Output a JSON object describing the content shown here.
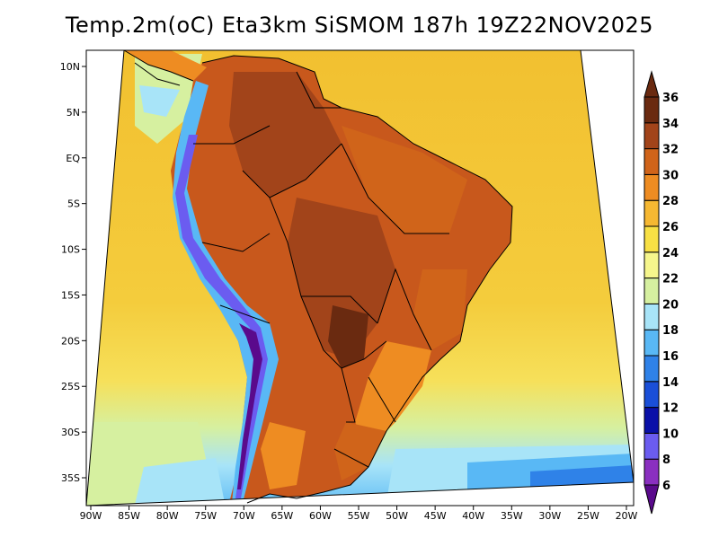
{
  "title": "Temp.2m(oC) Eta3km SiSMOM 187h 19Z22NOV2025",
  "lat_ticks": [
    "10N",
    "5N",
    "EQ",
    "5S",
    "10S",
    "15S",
    "20S",
    "25S",
    "30S",
    "35S"
  ],
  "lon_ticks": [
    "90W",
    "85W",
    "80W",
    "75W",
    "70W",
    "65W",
    "60W",
    "55W",
    "50W",
    "45W",
    "40W",
    "35W",
    "30W",
    "25W",
    "20W"
  ],
  "colorbar": {
    "labels": [
      "6",
      "8",
      "10",
      "12",
      "14",
      "16",
      "18",
      "20",
      "22",
      "24",
      "26",
      "28",
      "30",
      "32",
      "34",
      "36"
    ],
    "colors": [
      "#5a0a8c",
      "#8a2fc0",
      "#6b5cf0",
      "#0a10a8",
      "#1a4fd8",
      "#2f82e8",
      "#59b8f5",
      "#a8e4f8",
      "#d6f0a0",
      "#f6f68c",
      "#f8e044",
      "#f6b832",
      "#ee8c22",
      "#d0641a",
      "#a2441a",
      "#6a2a10"
    ]
  },
  "palette": {
    "ocean_warm": "#f2c030",
    "ocean_mid": "#f6e05a",
    "ocean_cool": "#d6f0a0",
    "ocean_cold": "#a8e4f8",
    "ocean_colder": "#59b8f5",
    "ocean_coldest": "#2f82e8",
    "land_hot": "#c8581c",
    "land_hotter": "#a2441a",
    "andes_cold": "#6b5cf0",
    "andes_colder": "#5a0a8c",
    "land_mild": "#ee8c22"
  }
}
